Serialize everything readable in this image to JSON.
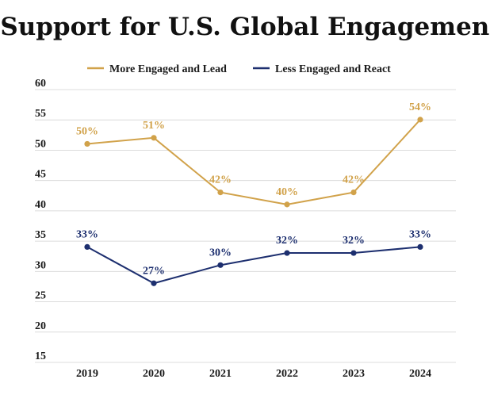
{
  "colors": {
    "series1": "#d1a24a",
    "series2": "#1d2f6f",
    "grid": "#dcdcdc"
  },
  "chart_data": {
    "type": "line",
    "title": "Support for U.S. Global Engagement",
    "xlabel": "",
    "ylabel": "",
    "categories": [
      "2019",
      "2020",
      "2021",
      "2022",
      "2023",
      "2024"
    ],
    "ylim": [
      15,
      60
    ],
    "yticks": [
      60,
      55,
      50,
      45,
      40,
      35,
      30,
      25,
      20,
      15
    ],
    "grid": true,
    "legend_position": "top-center",
    "series": [
      {
        "name": "More Engaged and Lead",
        "values": [
          50,
          51,
          42,
          40,
          42,
          54
        ],
        "labels": [
          "50%",
          "51%",
          "42%",
          "40%",
          "42%",
          "54%"
        ],
        "color": "#d1a24a"
      },
      {
        "name": "Less Engaged and React",
        "values": [
          33,
          27,
          30,
          32,
          32,
          33
        ],
        "labels": [
          "33%",
          "27%",
          "30%",
          "32%",
          "32%",
          "33%"
        ],
        "color": "#1d2f6f"
      }
    ]
  }
}
